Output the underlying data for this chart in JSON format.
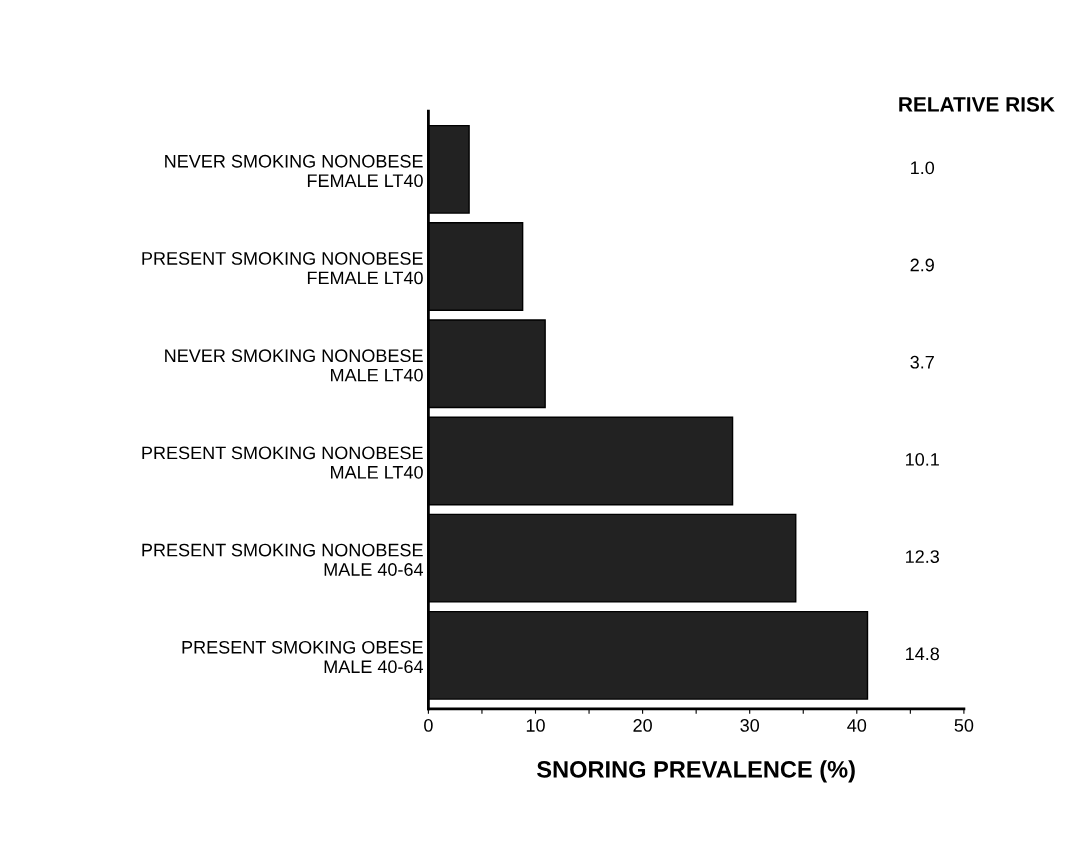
{
  "chart_data": {
    "type": "bar",
    "orientation": "horizontal",
    "xlabel": "SNORING PREVALENCE (%)",
    "categories": [
      "NEVER SMOKING NONOBESE\nFEMALE LT40",
      "PRESENT SMOKING NONOBESE\nFEMALE LT40",
      "NEVER SMOKING NONOBESE\nMALE LT40",
      "PRESENT SMOKING NONOBESE\nMALE LT40",
      "PRESENT SMOKING NONOBESE\nMALE 40-64",
      "PRESENT SMOKING OBESE\nMALE 40-64"
    ],
    "values": [
      3.8,
      8.8,
      10.9,
      28.4,
      34.3,
      41.0
    ],
    "color": "#222222",
    "xlim": [
      0,
      50
    ],
    "xticks": [
      0,
      {
        "value": 5,
        "label": null
      },
      10,
      {
        "value": 15,
        "label": null
      },
      20,
      {
        "value": 25,
        "label": null
      },
      30,
      {
        "value": 35,
        "label": null
      },
      40,
      {
        "value": 45,
        "label": null
      },
      50
    ],
    "annotations": [
      "RELATIVE RISK",
      "1.0",
      "2.9",
      "3.7",
      "10.1",
      "12.3",
      "14.8"
    ],
    "grid": false,
    "legend": false
  }
}
